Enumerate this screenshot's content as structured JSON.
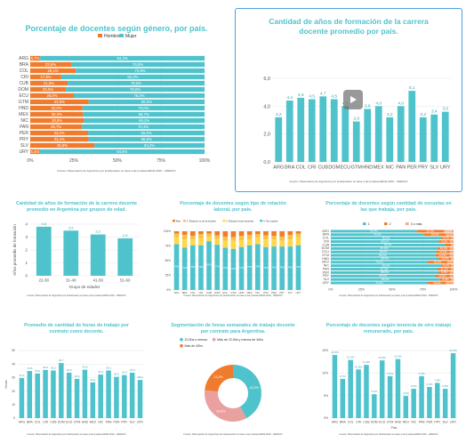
{
  "colors": {
    "teal": "#4ec3cc",
    "orange": "#f07b2c",
    "pink": "#eba0a0",
    "yellow": "#ffd84a",
    "yellow2": "#f5c242",
    "peach": "#f5a97d",
    "grid": "#e4e4e4",
    "axis": "#555"
  },
  "play_icon": "play-button-icon",
  "p1": {
    "title": "Porcentaje de docentes según género, por país.",
    "source": "Fuente: Observatorio de Argentinos por la Educación en base a las pruebas ERCE 2019 - UNESCO"
  },
  "p2": {
    "title": "Cantidad de años de formación de la carrera docente promedio por país.",
    "source": "Fuente: Observatorio de Argentinos por la Educación en base a las pruebas ERCE 2019 - UNESCO"
  },
  "p3": {
    "title": "Cantidad de años de formación de la carrera docente promedio en Argentina por grupos de edad.",
    "source": "Fuente: Observatorio de Argentinos por la Educación en base a las pruebas ERCE 2019 - UNESCO"
  },
  "p4": {
    "title": "Porcentaje de docentes según tipo de rotación laboral, por país.",
    "source": "Fuente: Observatorio de Argentinos por la Educación en base a las pruebas ERCE 2019 - UNESCO"
  },
  "p5": {
    "title": "Porcentaje de docentes según cantidad de escuelas en las que trabaja, por país.",
    "source": "Fuente: Observatorio de Argentinos por la Educación en base a las pruebas ERCE 2019 - UNESCO"
  },
  "p6": {
    "title": "Promedio de cantidad de horas de trabajo por contrato como docente.",
    "source": "Fuente: Observatorio de Argentinos por la Educación en base a las pruebas ERCE 2019 - UNESCO"
  },
  "p7": {
    "title": "Segmentación de horas semanales de trabajo docente por contrato para Argentina.",
    "source": "Fuente: Observatorio de Argentinos por la Educación en base a las pruebas ERCE 2019 - UNESCO"
  },
  "p8": {
    "title": "Porcentaje de docentes según tenencia de otro trabajo remunerado, por país.",
    "source": "Fuente: Observatorio de Argentinos por la Educación en base a las pruebas ERCE 2019 - UNESCO"
  },
  "chart_data": [
    {
      "type": "bar",
      "orientation": "horizontal-stacked",
      "title": "Porcentaje de docentes según género, por país.",
      "categories": [
        "ARG",
        "BRA",
        "COL",
        "CRI",
        "CUB",
        "DOM",
        "ECU",
        "GTM",
        "HND",
        "MEX",
        "NIC",
        "PAN",
        "PER",
        "PRY",
        "SLV",
        "URY"
      ],
      "series": [
        {
          "name": "Hombre",
          "values": [
            5.7,
            23.5,
            26.1,
            17.8,
            21.5,
            20.5,
            25.0,
            33.5,
            30.0,
            30.3,
            30.8,
            29.7,
            33.2,
            33.4,
            36.8,
            5.4
          ]
        },
        {
          "name": "Mujer",
          "values": [
            94.3,
            76.5,
            73.9,
            82.2,
            78.5,
            79.5,
            75.0,
            66.5,
            70.0,
            69.7,
            69.2,
            70.3,
            66.8,
            66.6,
            63.2,
            94.6
          ]
        }
      ],
      "x_ticks": [
        "0%",
        "25%",
        "50%",
        "75%",
        "100%"
      ],
      "legend": "top"
    },
    {
      "type": "bar",
      "title": "Cantidad de años de formación de la carrera docente promedio por país.",
      "categories": [
        "ARG",
        "BRA",
        "COL",
        "CRI",
        "CUB",
        "DOM",
        "ECU",
        "GTM",
        "HND",
        "MEX",
        "NIC",
        "PAN",
        "PER",
        "PRY",
        "SLV",
        "URY"
      ],
      "values": [
        3.2,
        4.4,
        4.6,
        4.5,
        4.7,
        4.5,
        4.0,
        2.9,
        3.8,
        4.0,
        3.2,
        4.0,
        5.1,
        3.2,
        3.4,
        3.6
      ],
      "ylim": [
        0,
        6
      ],
      "y_ticks": [
        "0,0",
        "2,0",
        "4,0",
        "6,0"
      ]
    },
    {
      "type": "bar",
      "title": "Cantidad de años de formación de la carrera docente promedio en Argentina por grupos de edad.",
      "categories": [
        "22-30",
        "31-40",
        "41-50",
        "51-60"
      ],
      "values": [
        3.8,
        3.5,
        3.2,
        2.9
      ],
      "ylim": [
        0,
        4
      ],
      "y_ticks": [
        "0",
        "1",
        "2",
        "3",
        "4"
      ],
      "xlabel": "Grupo de edades",
      "ylabel": "Años promedio de formación"
    },
    {
      "type": "bar",
      "orientation": "vertical-stacked",
      "title": "Porcentaje de docentes según tipo de rotación laboral, por país.",
      "categories": [
        "ARG",
        "BRA",
        "COL",
        "CRI",
        "CUB",
        "DOM",
        "ECU",
        "GTM",
        "HND",
        "MEX",
        "NIC",
        "PAN",
        "PER",
        "PRY",
        "SLV",
        "URY"
      ],
      "series": [
        {
          "name": "Más",
          "values": [
            4,
            6,
            8,
            5,
            4,
            7,
            9,
            10,
            8,
            6,
            5,
            7,
            8,
            9,
            6,
            4
          ]
        },
        {
          "name": "2. Rotación no de la escuela",
          "values": [
            6,
            8,
            6,
            7,
            5,
            6,
            7,
            6,
            7,
            8,
            6,
            7,
            6,
            7,
            8,
            6
          ]
        },
        {
          "name": "3. Rotación entre escuelas",
          "values": [
            12,
            14,
            10,
            12,
            8,
            10,
            12,
            14,
            12,
            10,
            11,
            13,
            12,
            10,
            12,
            14
          ]
        },
        {
          "name": "4. Sin rotación",
          "values": [
            78,
            72,
            76,
            76,
            83,
            77,
            72,
            70,
            73,
            76,
            78,
            73,
            74,
            74,
            74,
            76
          ]
        }
      ],
      "y_ticks": [
        "0%",
        "25%",
        "50%",
        "75%",
        "100%"
      ],
      "legend": "top"
    },
    {
      "type": "bar",
      "orientation": "horizontal-stacked",
      "title": "Porcentaje de docentes según cantidad de escuelas en las que trabaja, por país.",
      "categories": [
        "ARG",
        "BRA",
        "COL",
        "CRI",
        "CUB",
        "DOM",
        "ECU",
        "GTM",
        "HND",
        "MEX",
        "NIC",
        "PAN",
        "PER",
        "PRY",
        "SLV",
        "URY"
      ],
      "series": [
        {
          "name": "1",
          "values": [
            70,
            76,
            90,
            88,
            93,
            87,
            86,
            85,
            88,
            79,
            90,
            87,
            88,
            85,
            89,
            79
          ]
        },
        {
          "name": "2",
          "values": [
            22,
            18,
            8,
            9,
            5,
            10,
            11,
            12,
            10,
            16,
            8,
            11,
            9,
            12,
            9,
            15
          ]
        },
        {
          "name": "3 o más",
          "values": [
            8,
            6,
            2,
            3,
            2,
            3,
            3,
            3,
            2,
            5,
            2,
            2,
            3,
            3,
            2,
            6
          ]
        }
      ],
      "x_ticks": [
        "0%",
        "25%",
        "50%",
        "75%",
        "100%"
      ],
      "legend": "top"
    },
    {
      "type": "bar",
      "title": "Promedio de cantidad de horas de trabajo por contrato como docente.",
      "categories": [
        "ARG",
        "BRA",
        "COL",
        "CRI",
        "CUB",
        "DOM",
        "ECU",
        "GTM",
        "HND",
        "MEX",
        "NIC",
        "PAN",
        "PER",
        "PRY",
        "SLV",
        "URY"
      ],
      "values": [
        29.6,
        34.8,
        33.0,
        35.6,
        35.2,
        40.7,
        33.6,
        29.0,
        35.8,
        26.4,
        32.2,
        35.2,
        30.5,
        31.8,
        33.6,
        28.2
      ],
      "ylim": [
        0,
        50
      ],
      "y_ticks": [
        "0",
        "10",
        "20",
        "30",
        "40",
        "50"
      ],
      "ylabel": "Horas"
    },
    {
      "type": "pie",
      "title": "Segmentación de horas semanales de trabajo docente por contrato para Argentina.",
      "categories": [
        "22,5hs o menos",
        "Más de 22,5hs y menos de 40hs",
        "Más de 40hs"
      ],
      "values": [
        42.2,
        34.5,
        23.3
      ],
      "legend": "top"
    },
    {
      "type": "bar",
      "title": "Porcentaje de docentes según tenencia de otro trabajo remunerado, por país.",
      "categories": [
        "ARG",
        "BRA",
        "COL",
        "CRI",
        "CUB",
        "DOM",
        "ECU",
        "GTM",
        "HND",
        "MEX",
        "NIC",
        "PAN",
        "PER",
        "PRY",
        "SLV",
        "URY"
      ],
      "values": [
        14.0,
        8.7,
        12.9,
        10.8,
        11.8,
        5.3,
        12.8,
        9.3,
        13.1,
        4.9,
        6.5,
        9.3,
        6.9,
        7.8,
        6.5,
        14.4
      ],
      "ylim": [
        0,
        15
      ],
      "y_ticks": [
        "0%",
        "5%",
        "10%",
        "15%"
      ],
      "xlabel": "País"
    }
  ]
}
